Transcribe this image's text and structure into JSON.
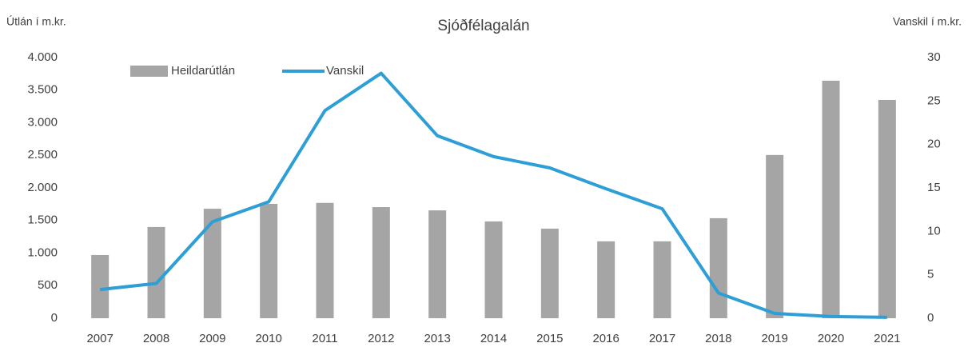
{
  "chart_data": {
    "type": "bar-line",
    "title": "Sjóðfélagalán",
    "y_label": "Útlán í m.kr.",
    "y2_label": "Vanskil í m.kr.",
    "categories": [
      "2007",
      "2008",
      "2009",
      "2010",
      "2011",
      "2012",
      "2013",
      "2014",
      "2015",
      "2016",
      "2017",
      "2018",
      "2019",
      "2020",
      "2021"
    ],
    "series": [
      {
        "name": "Heildarútlán",
        "type": "bar",
        "color": "#a5a5a5",
        "values": [
          970,
          1400,
          1680,
          1755,
          1770,
          1705,
          1655,
          1485,
          1375,
          1180,
          1180,
          1535,
          2505,
          3645,
          3350
        ]
      },
      {
        "name": "Vanskil",
        "type": "line",
        "axis": "y2",
        "color": "#2e9fd6",
        "values": [
          3.3,
          4.0,
          11.1,
          13.4,
          23.9,
          28.2,
          21.0,
          18.6,
          17.3,
          14.9,
          12.6,
          2.9,
          0.55,
          0.2,
          0.1
        ]
      }
    ],
    "ylim": [
      0,
      4000
    ],
    "yticks": [
      0,
      500,
      {
        "value": 1000,
        "label": "1.000"
      },
      {
        "value": 1500,
        "label": "1.500"
      },
      {
        "value": 2000,
        "label": "2.000"
      },
      {
        "value": 2500,
        "label": "2.500"
      },
      {
        "value": 3000,
        "label": "3.000"
      },
      {
        "value": 3500,
        "label": "3.500"
      },
      {
        "value": 4000,
        "label": "4.000"
      }
    ],
    "y2lim": [
      0,
      30
    ],
    "y2ticks": [
      0,
      5,
      10,
      15,
      20,
      25,
      30
    ],
    "grid": false,
    "legend": "top-left"
  }
}
